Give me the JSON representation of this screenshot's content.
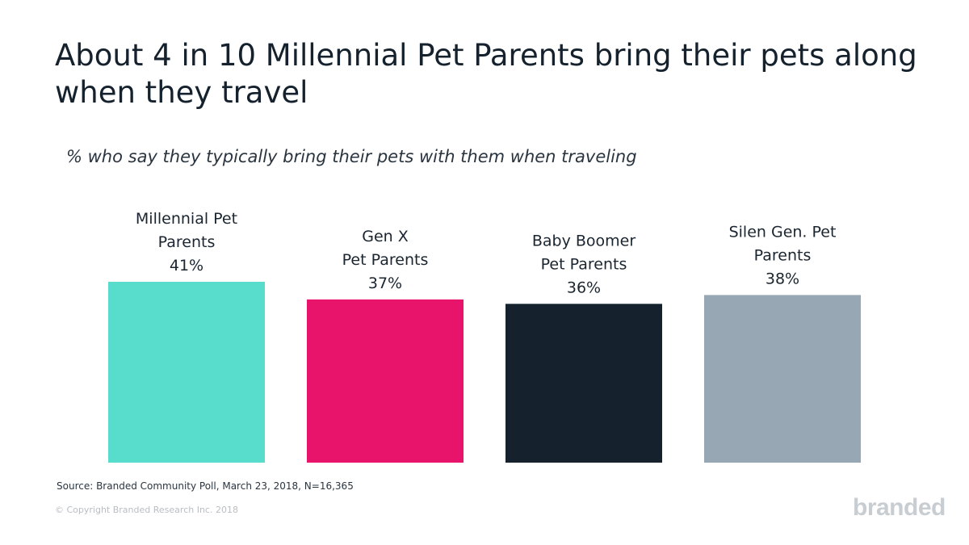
{
  "title": "About 4 in 10 Millennial Pet Parents bring their pets along when they travel",
  "chart_data": {
    "type": "bar",
    "title": "About 4 in 10 Millennial Pet Parents bring their pets along when they travel",
    "subtitle": "% who say they typically bring their pets with them when traveling",
    "categories": [
      "Millennial Pet Parents",
      "Gen X Pet Parents",
      "Baby Boomer Pet Parents",
      "Silen Gen. Pet Parents"
    ],
    "label_lines": [
      [
        "Millennial Pet",
        "Parents",
        "41%"
      ],
      [
        "Gen X",
        "Pet Parents",
        "37%"
      ],
      [
        "Baby Boomer",
        "Pet Parents",
        "36%"
      ],
      [
        "Silen Gen. Pet",
        "Parents",
        "38%"
      ]
    ],
    "values": [
      41,
      37,
      36,
      38
    ],
    "value_labels": [
      "41%",
      "37%",
      "36%",
      "38%"
    ],
    "colors": [
      "#58dccb",
      "#e8136a",
      "#15222d",
      "#97a8b4"
    ],
    "xlabel": "",
    "ylabel": "",
    "ylim": [
      0,
      41
    ]
  },
  "source": "Source: Branded Community Poll, March 23, 2018, N=16,365",
  "copyright": "© Copyright Branded Research Inc. 2018",
  "logo_text": "branded"
}
